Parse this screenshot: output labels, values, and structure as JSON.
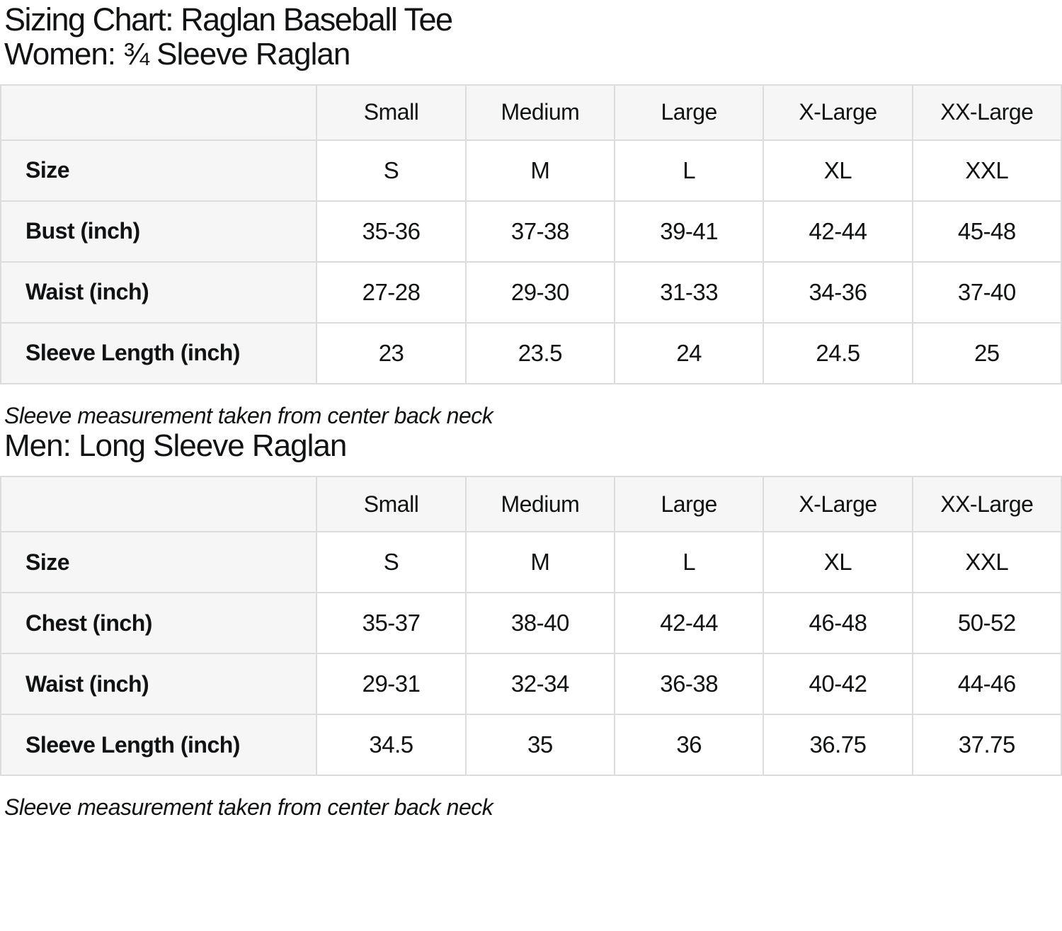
{
  "page": {
    "title": "Sizing Chart: Raglan Baseball Tee"
  },
  "colors": {
    "header_bg": "#f6f6f6",
    "border": "#dcdcdc",
    "text": "#101213"
  },
  "sections": [
    {
      "heading": "Women: ¾ Sleeve Raglan",
      "columns": [
        "Small",
        "Medium",
        "Large",
        "X-Large",
        "XX-Large"
      ],
      "rows": [
        {
          "label": "Size",
          "values": [
            "S",
            "M",
            "L",
            "XL",
            "XXL"
          ]
        },
        {
          "label": "Bust (inch)",
          "values": [
            "35-36",
            "37-38",
            "39-41",
            "42-44",
            "45-48"
          ]
        },
        {
          "label": "Waist (inch)",
          "values": [
            "27-28",
            "29-30",
            "31-33",
            "34-36",
            "37-40"
          ]
        },
        {
          "label": "Sleeve Length (inch)",
          "values": [
            "23",
            "23.5",
            "24",
            "24.5",
            "25"
          ]
        }
      ],
      "note": "Sleeve measurement taken from center back neck"
    },
    {
      "heading": "Men: Long Sleeve Raglan",
      "columns": [
        "Small",
        "Medium",
        "Large",
        "X-Large",
        "XX-Large"
      ],
      "rows": [
        {
          "label": "Size",
          "values": [
            "S",
            "M",
            "L",
            "XL",
            "XXL"
          ]
        },
        {
          "label": "Chest (inch)",
          "values": [
            "35-37",
            "38-40",
            "42-44",
            "46-48",
            "50-52"
          ]
        },
        {
          "label": "Waist (inch)",
          "values": [
            "29-31",
            "32-34",
            "36-38",
            "40-42",
            "44-46"
          ]
        },
        {
          "label": "Sleeve Length (inch)",
          "values": [
            "34.5",
            "35",
            "36",
            "36.75",
            "37.75"
          ]
        }
      ],
      "note": "Sleeve measurement taken from center back neck"
    }
  ]
}
